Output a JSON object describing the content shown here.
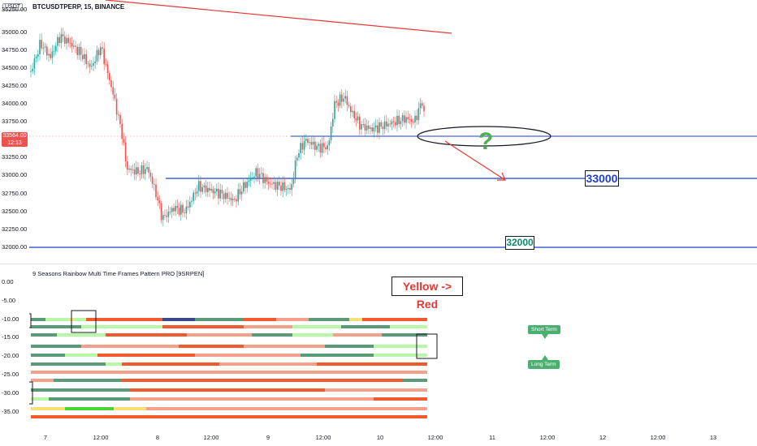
{
  "chart": {
    "symbol": "BTCUSDTPERP, 15, BINANCE",
    "currency": "USDT",
    "current_price": "33564.00",
    "countdown": "12:13",
    "indicator_title": "9 Seasons Rainbow Multi Time Frames Pattern PRO [9SRPEN]"
  },
  "price_axis": [
    "35250.00",
    "35000.00",
    "34750.00",
    "34500.00",
    "34250.00",
    "34000.00",
    "33750.00",
    "33250.00",
    "33000.00",
    "32750.00",
    "32500.00",
    "32250.00",
    "32000.00"
  ],
  "indicator_axis": [
    "0.00",
    "-5.00",
    "-10.00",
    "-15.00",
    "-20.00",
    "-25.00",
    "-30.00",
    "-35.00"
  ],
  "time_axis": [
    "7",
    "12:00",
    "8",
    "12:00",
    "9",
    "12:00",
    "10",
    "12:00",
    "11",
    "12:00",
    "12",
    "12:00",
    "13"
  ],
  "annotations": {
    "level_33000": "33000",
    "level_32000": "32000",
    "question": "?",
    "color_note": "Yellow -> Red",
    "short_term": "Short Term",
    "long_term": "Long Term"
  },
  "colors": {
    "dark_green": "#5a9a78",
    "light_green": "#b7f7a7",
    "bright_green": "#4cd040",
    "salmon": "#f5a08a",
    "orange_red": "#f05a2d",
    "red": "#e53935",
    "yellow": "#f7e07a",
    "navy": "#3a4a8a",
    "candle_up": "#26a69a",
    "candle_down": "#ef5350",
    "level_line": "#1e40c8"
  }
}
